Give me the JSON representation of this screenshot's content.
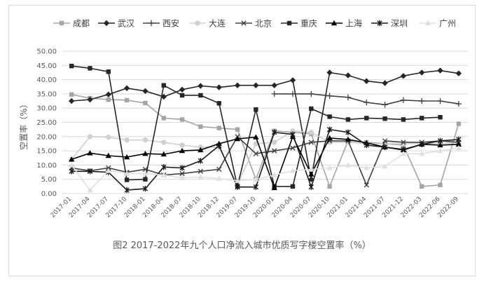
{
  "chart_data": {
    "type": "line",
    "caption": "图2  2017-2022年九个人口净流入城市优质写字楼空置率（%）",
    "ylabel": "空置率（%）",
    "xlabel": "",
    "ylim": [
      0,
      50
    ],
    "yticks": [
      "0.00",
      "5.00",
      "10.00",
      "15.00",
      "20.00",
      "25.00",
      "30.00",
      "35.00",
      "40.00",
      "45.00",
      "50.00"
    ],
    "grid": true,
    "legend_position": "top",
    "x_labels": [
      "2017-01",
      "2017-04",
      "2017-07",
      "2017-10",
      "2018-01",
      "2018-04",
      "2018-07",
      "2018-10",
      "2018-12",
      "2019-07",
      "2019-10",
      "2020-01",
      "2020-04",
      "2020-07",
      "2020-10",
      "2021-01",
      "2021-04",
      "2021-07",
      "2021-12",
      "2022-03",
      "2022-06",
      "2022-09"
    ],
    "series": [
      {
        "name": "成都",
        "color": "#a5a5a5",
        "marker": "square",
        "values": [
          34.8,
          33.5,
          33.0,
          32.8,
          31.8,
          26.5,
          26.0,
          23.5,
          23.0,
          22.5,
          5.0,
          22.0,
          21.5,
          21.0,
          2.5,
          18.5,
          18.0,
          17.5,
          17.0,
          2.5,
          3.0,
          24.5
        ]
      },
      {
        "name": "武汉",
        "color": "#262626",
        "marker": "diamond",
        "values": [
          32.5,
          33.0,
          34.8,
          37.0,
          36.0,
          34.0,
          36.5,
          37.8,
          37.3,
          38.0,
          38.0,
          38.0,
          39.8,
          5.0,
          42.5,
          41.5,
          39.5,
          38.8,
          41.3,
          42.5,
          43.2,
          42.2
        ]
      },
      {
        "name": "西安",
        "color": "#404040",
        "marker": "plus",
        "values": [
          null,
          null,
          null,
          null,
          null,
          null,
          null,
          null,
          null,
          null,
          null,
          35.0,
          35.0,
          35.0,
          34.3,
          33.8,
          32.0,
          31.2,
          32.8,
          32.5,
          32.5,
          31.5
        ]
      },
      {
        "name": "大连",
        "color": "#d0d0d0",
        "marker": "circle",
        "values": [
          12.0,
          20.0,
          19.8,
          18.8,
          18.8,
          18.0,
          17.0,
          16.3,
          16.3,
          3.0,
          17.5,
          18.0,
          22.0,
          21.5,
          18.0,
          18.0,
          17.5,
          17.5,
          17.5,
          17.5,
          17.5,
          18.0
        ]
      },
      {
        "name": "北京",
        "color": "#404040",
        "marker": "x",
        "values": [
          9.0,
          8.0,
          9.0,
          7.5,
          8.5,
          6.5,
          7.0,
          7.8,
          8.5,
          20.0,
          14.0,
          15.0,
          16.0,
          18.0,
          18.5,
          18.5,
          3.0,
          18.5,
          18.0,
          18.0,
          18.5,
          18.0
        ]
      },
      {
        "name": "重庆",
        "color": "#262626",
        "marker": "filled-square",
        "values": [
          44.8,
          44.0,
          42.8,
          4.8,
          5.0,
          38.0,
          34.5,
          34.5,
          31.7,
          2.5,
          29.5,
          2.5,
          2.5,
          29.8,
          27.0,
          26.0,
          26.5,
          26.3,
          26.0,
          26.5,
          26.8,
          null
        ]
      },
      {
        "name": "上海",
        "color": "#000000",
        "marker": "triangle",
        "values": [
          12.0,
          14.2,
          13.3,
          12.8,
          14.0,
          13.8,
          15.0,
          15.3,
          17.5,
          19.2,
          19.8,
          2.0,
          20.0,
          6.8,
          19.5,
          19.0,
          17.8,
          16.3,
          15.3,
          17.3,
          17.0,
          17.3
        ]
      },
      {
        "name": "深圳",
        "color": "#1a1a1a",
        "marker": "asterisk",
        "values": [
          7.8,
          7.8,
          7.5,
          1.2,
          1.7,
          9.3,
          9.0,
          11.5,
          16.8,
          2.3,
          2.3,
          21.5,
          20.8,
          2.3,
          22.5,
          21.5,
          17.0,
          16.3,
          15.5,
          17.3,
          18.5,
          19.0
        ]
      },
      {
        "name": "广州",
        "color": "#e0e0e0",
        "marker": "triangle",
        "values": [
          10.0,
          1.2,
          8.0,
          7.0,
          7.0,
          6.5,
          5.5,
          5.8,
          5.3,
          4.5,
          5.0,
          6.5,
          8.0,
          8.5,
          9.0,
          10.0,
          9.0,
          9.5,
          14.0,
          14.0,
          15.0,
          16.0
        ]
      }
    ]
  }
}
